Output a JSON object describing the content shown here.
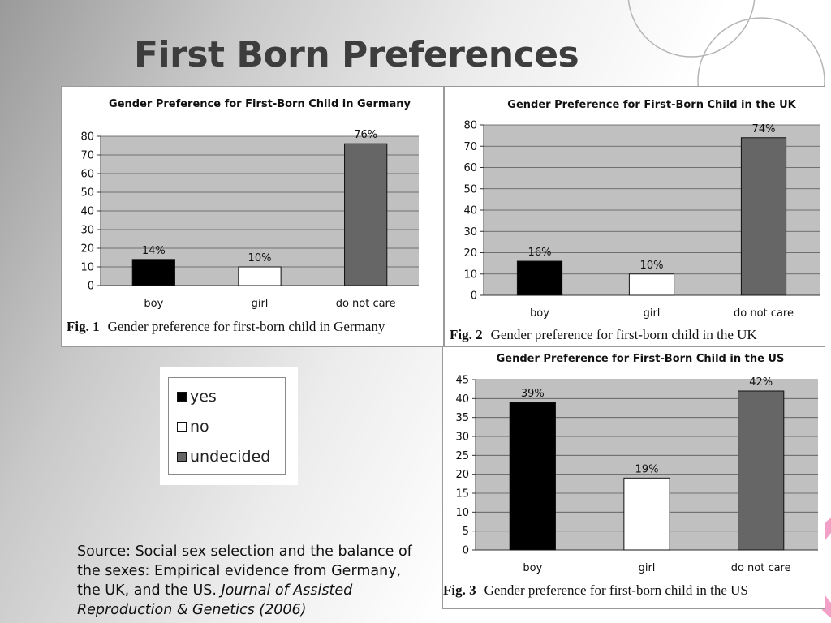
{
  "slide": {
    "title": "First Born Preferences",
    "source_text": "Source: Social sex selection and the balance of the sexes: Empirical evidence from Germany, the UK, and the US. ",
    "source_journal": "Journal of Assisted Reproduction & Genetics (2006)"
  },
  "legend": {
    "items": [
      {
        "label": "yes",
        "color": "#000000"
      },
      {
        "label": "no",
        "color": "#ffffff"
      },
      {
        "label": "undecided",
        "color": "#666666"
      }
    ]
  },
  "colors": {
    "plot_bg": "#c0c0c0",
    "boy": "#000000",
    "girl": "#ffffff",
    "do_not_care": "#666666"
  },
  "chart_data": [
    {
      "type": "bar",
      "title": "Gender Preference for First-Born Child in Germany",
      "categories": [
        "boy",
        "girl",
        "do not care"
      ],
      "values": [
        14,
        10,
        76
      ],
      "data_labels": [
        "14%",
        "10%",
        "76%"
      ],
      "ylim": [
        0,
        80
      ],
      "yticks": [
        0,
        10,
        20,
        30,
        40,
        50,
        60,
        70,
        80
      ],
      "grid": true,
      "fig_label": "Fig. 1",
      "caption": "Gender preference for first-born child in Germany"
    },
    {
      "type": "bar",
      "title": "Gender Preference for First-Born Child in the UK",
      "categories": [
        "boy",
        "girl",
        "do not care"
      ],
      "values": [
        16,
        10,
        74
      ],
      "data_labels": [
        "16%",
        "10%",
        "74%"
      ],
      "ylim": [
        0,
        80
      ],
      "yticks": [
        0,
        10,
        20,
        30,
        40,
        50,
        60,
        70,
        80
      ],
      "grid": true,
      "fig_label": "Fig. 2",
      "caption": "Gender preference for first-born child in the UK"
    },
    {
      "type": "bar",
      "title": "Gender Preference for First-Born Child in the US",
      "categories": [
        "boy",
        "girl",
        "do not care"
      ],
      "values": [
        39,
        19,
        42
      ],
      "data_labels": [
        "39%",
        "19%",
        "42%"
      ],
      "ylim": [
        0,
        45
      ],
      "yticks": [
        0,
        5,
        10,
        15,
        20,
        25,
        30,
        35,
        40,
        45
      ],
      "grid": true,
      "fig_label": "Fig. 3",
      "caption": "Gender preference for first-born child in the US"
    }
  ]
}
